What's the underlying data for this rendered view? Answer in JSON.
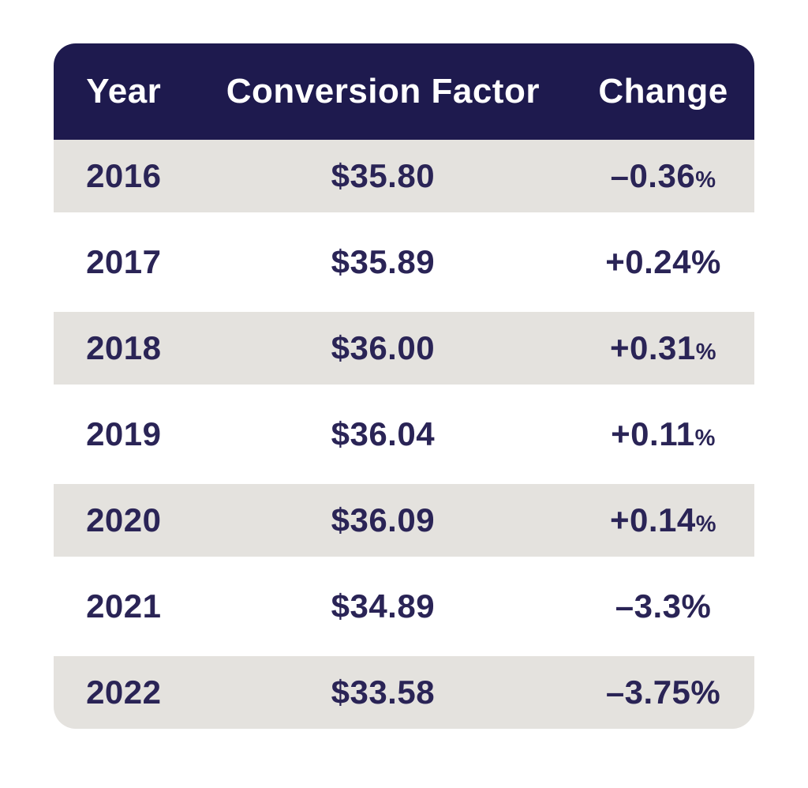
{
  "colors": {
    "header_bg": "#1e1a4e",
    "header_text": "#ffffff",
    "row_stripe_bg": "#e4e2de",
    "row_text": "#2a2456",
    "page_bg": "#ffffff"
  },
  "table": {
    "columns": [
      {
        "label": "Year"
      },
      {
        "label": "Conversion Factor"
      },
      {
        "label": "Change"
      }
    ],
    "rows": [
      {
        "year": "2016",
        "factor": "$35.80",
        "change_value": "–0.36",
        "change_unit": "%",
        "pct_class": "pct pct-small"
      },
      {
        "year": "2017",
        "factor": "$35.89",
        "change_value": "+0.24",
        "change_unit": "%",
        "pct_class": "pct"
      },
      {
        "year": "2018",
        "factor": "$36.00",
        "change_value": "+0.31",
        "change_unit": "%",
        "pct_class": "pct pct-small"
      },
      {
        "year": "2019",
        "factor": "$36.04",
        "change_value": "+0.11",
        "change_unit": "%",
        "pct_class": "pct pct-small"
      },
      {
        "year": "2020",
        "factor": "$36.09",
        "change_value": "+0.14",
        "change_unit": "%",
        "pct_class": "pct pct-small"
      },
      {
        "year": "2021",
        "factor": "$34.89",
        "change_value": "–3.3",
        "change_unit": "%",
        "pct_class": "pct"
      },
      {
        "year": "2022",
        "factor": "$33.58",
        "change_value": "–3.75",
        "change_unit": "%",
        "pct_class": "pct"
      }
    ]
  },
  "chart_data": {
    "type": "table",
    "title": "",
    "columns": [
      "Year",
      "Conversion Factor",
      "Change"
    ],
    "years": [
      2016,
      2017,
      2018,
      2019,
      2020,
      2021,
      2022
    ],
    "conversion_factor_usd": [
      35.8,
      35.89,
      36.0,
      36.04,
      36.09,
      34.89,
      33.58
    ],
    "change_pct": [
      -0.36,
      0.24,
      0.31,
      0.11,
      0.14,
      -3.3,
      -3.75
    ],
    "layout_hints": {
      "striped_rows": [
        2016,
        2018,
        2020,
        2022
      ],
      "header_style": "dark-navy rounded-top",
      "last_row_style": "rounded-bottom"
    }
  }
}
